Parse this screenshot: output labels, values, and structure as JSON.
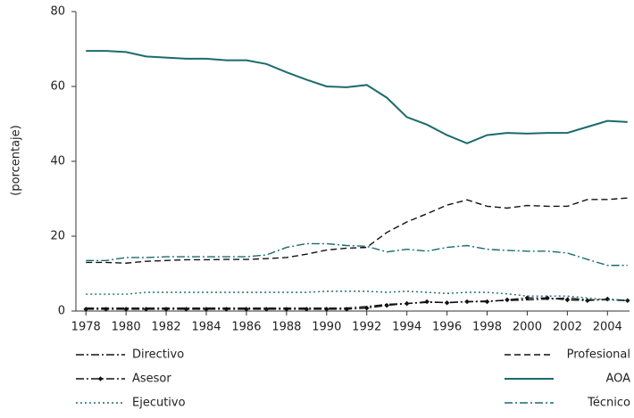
{
  "chart_data": {
    "type": "line",
    "y_label": "(porcentaje)",
    "x": [
      1978,
      1979,
      1980,
      1981,
      1982,
      1983,
      1984,
      1985,
      1986,
      1987,
      1988,
      1989,
      1990,
      1991,
      1992,
      1993,
      1994,
      1995,
      1996,
      1997,
      1998,
      1999,
      2000,
      2001,
      2002,
      2003,
      2004,
      2005
    ],
    "xlim": [
      1977.5,
      2005.1
    ],
    "xticks": [
      1978,
      1980,
      1982,
      1984,
      1986,
      1988,
      1990,
      1992,
      1994,
      1996,
      1998,
      2000,
      2002,
      2004
    ],
    "ylim": [
      0,
      80
    ],
    "yticks": [
      0,
      20,
      40,
      60,
      80
    ],
    "grid": false,
    "series": [
      {
        "name": "Directivo",
        "color": "#111111",
        "dash": "9,3,2,3",
        "marker": "none",
        "values": [
          0.8,
          0.8,
          0.8,
          0.8,
          0.8,
          0.8,
          0.8,
          0.8,
          0.8,
          0.8,
          0.8,
          0.8,
          0.8,
          0.8,
          1.2,
          1.8,
          2,
          2.3,
          2.3,
          2.5,
          2.7,
          2.8,
          3,
          3.2,
          3.5,
          3,
          3,
          2.8
        ]
      },
      {
        "name": "Profesional",
        "color": "#111111",
        "dash": "7,4",
        "marker": "none",
        "values": [
          13,
          13,
          12.8,
          13.3,
          13.5,
          13.7,
          13.7,
          13.8,
          13.8,
          14,
          14.3,
          15.2,
          16.3,
          16.8,
          17,
          21,
          23.8,
          26,
          28.3,
          29.7,
          28,
          27.5,
          28.2,
          28,
          28,
          29.8,
          29.8,
          30.2
        ]
      },
      {
        "name": "Asesor",
        "color": "#111111",
        "dash": "9,3,2,3",
        "marker": "diamond",
        "values": [
          0.5,
          0.5,
          0.5,
          0.5,
          0.5,
          0.5,
          0.5,
          0.5,
          0.5,
          0.5,
          0.5,
          0.5,
          0.5,
          0.5,
          0.8,
          1.5,
          2,
          2.5,
          2.2,
          2.5,
          2.5,
          3,
          3.5,
          3.5,
          3,
          2.8,
          3.2,
          2.8
        ]
      },
      {
        "name": "AOA",
        "color": "#1b6b6b",
        "dash": "none",
        "marker": "none",
        "values": [
          69.5,
          69.5,
          69.2,
          68,
          67.7,
          67.4,
          67.4,
          67,
          67,
          66,
          63.8,
          61.8,
          60,
          59.8,
          60.4,
          57,
          51.8,
          49.8,
          47,
          44.8,
          47,
          47.6,
          47.4,
          47.6,
          47.6,
          49.2,
          50.8,
          50.5
        ]
      },
      {
        "name": "Ejecutivo",
        "color": "#1b6b6b",
        "dash": "2,3",
        "marker": "none",
        "values": [
          4.5,
          4.5,
          4.5,
          5,
          5,
          5,
          5,
          5,
          5,
          5,
          5,
          5,
          5.3,
          5.3,
          5.3,
          5,
          5.3,
          5,
          4.7,
          5,
          5,
          4.6,
          4,
          4,
          4,
          3.5,
          3,
          3
        ]
      },
      {
        "name": "Técnico",
        "color": "#1b6b6b",
        "dash": "9,3,2,3",
        "marker": "none",
        "values": [
          13.5,
          13.5,
          14.3,
          14.3,
          14.5,
          14.5,
          14.5,
          14.5,
          14.5,
          15,
          17,
          18,
          18,
          17.5,
          17.3,
          15.8,
          16.5,
          16,
          17,
          17.5,
          16.5,
          16.2,
          16,
          16,
          15.5,
          13.8,
          12.2,
          12.2
        ]
      }
    ]
  }
}
